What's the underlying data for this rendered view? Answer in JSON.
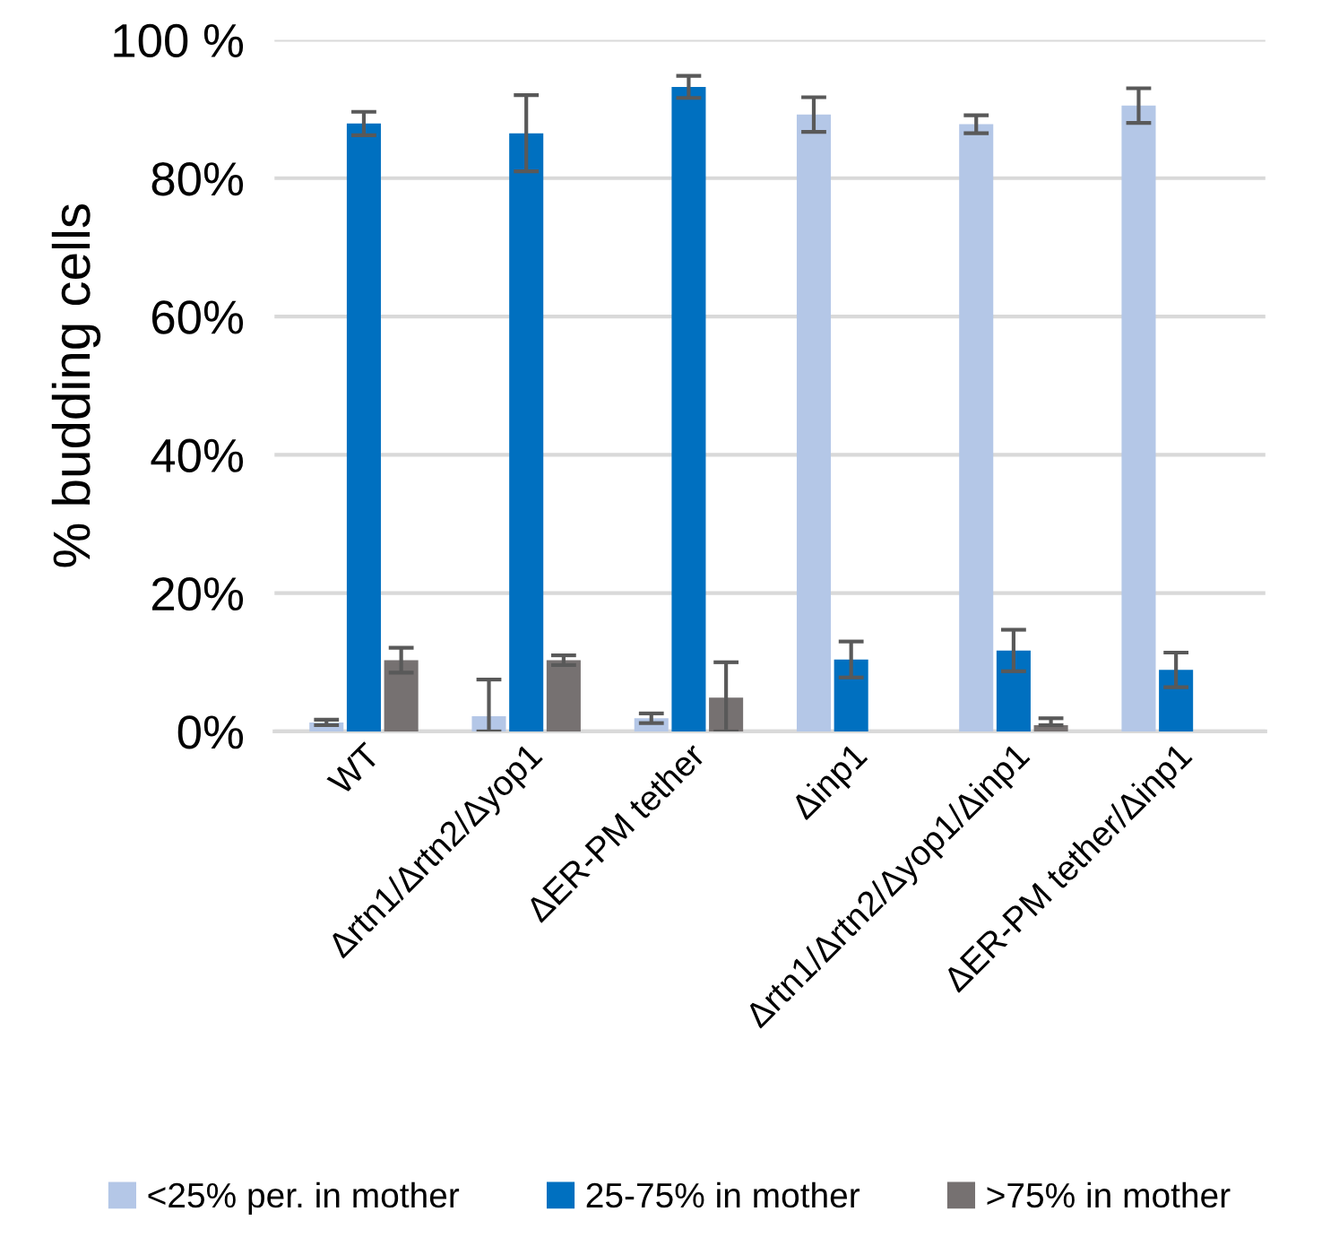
{
  "chart_data": {
    "type": "bar",
    "ylabel": "% budding cells",
    "categories": [
      "WT",
      "Δrtn1/Δrtn2/Δyop1",
      "ΔER-PM tether",
      "Δinp1",
      "Δrtn1/Δrtn2/Δyop1/Δinp1",
      "ΔER-PM tether/Δinp1"
    ],
    "series": [
      {
        "name": "<25% per. in mother",
        "color": "#b4c7e7",
        "values": [
          1.3,
          2.2,
          1.9,
          89.2,
          87.8,
          90.5
        ],
        "errors": [
          0.4,
          [
            0,
            7.5
          ],
          0.7,
          2.5,
          1.3,
          2.5
        ]
      },
      {
        "name": "25-75% in mother",
        "color": "#0070c0",
        "values": [
          87.9,
          86.5,
          93.2,
          10.4,
          11.7,
          8.9
        ],
        "errors": [
          1.7,
          5.5,
          1.6,
          2.6,
          3.0,
          2.5
        ]
      },
      {
        "name": ">75% in mother",
        "color": "#767171",
        "values": [
          10.3,
          10.3,
          4.9,
          null,
          0.9,
          null
        ],
        "errors": [
          1.8,
          0.7,
          [
            0,
            10.0
          ],
          null,
          [
            0.9,
            1.9
          ],
          null
        ]
      }
    ],
    "ylim": [
      0,
      100
    ],
    "yticks": [
      {
        "value": 0,
        "label": "0%"
      },
      {
        "value": 20,
        "label": "20%"
      },
      {
        "value": 40,
        "label": "40%"
      },
      {
        "value": 60,
        "label": "60%"
      },
      {
        "value": 80,
        "label": "80%"
      },
      {
        "value": 100,
        "label": "100 %"
      }
    ],
    "grid": "y",
    "legend": "bottom"
  }
}
